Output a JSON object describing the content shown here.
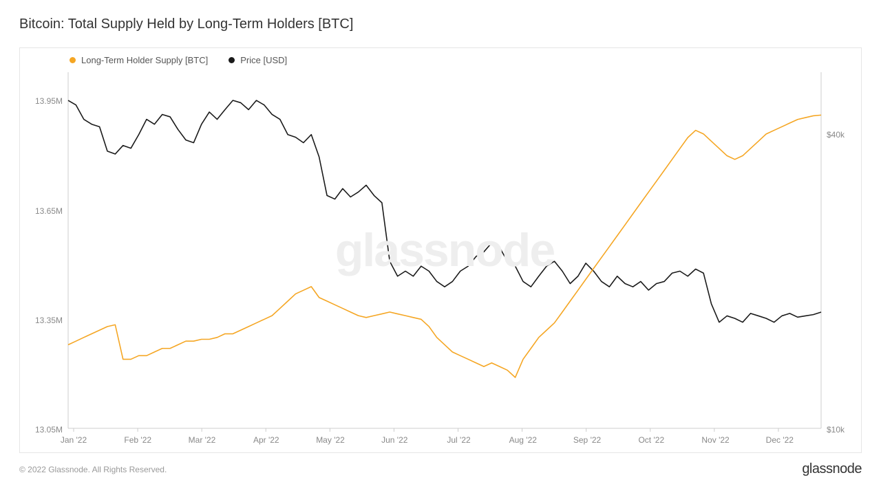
{
  "title": "Bitcoin: Total Supply Held by Long-Term Holders [BTC]",
  "copyright": "© 2022 Glassnode. All Rights Reserved.",
  "brand": "glassnode",
  "watermark": "glassnode",
  "legend": {
    "series1": {
      "label": "Long-Term Holder Supply [BTC]",
      "color": "#f5a623"
    },
    "series2": {
      "label": "Price [USD]",
      "color": "#1a1a1a"
    }
  },
  "chart": {
    "type": "line",
    "background_color": "#ffffff",
    "border_color": "#e5e5e5",
    "axis_color": "#cccccc",
    "label_color": "#888888",
    "label_fontsize": 12,
    "title_fontsize": 20,
    "line_width": 1.6,
    "x_labels": [
      "Jan '22",
      "Feb '22",
      "Mar '22",
      "Apr '22",
      "May '22",
      "Jun '22",
      "Jul '22",
      "Aug '22",
      "Sep '22",
      "Oct '22",
      "Nov '22",
      "Dec '22"
    ],
    "y_left": {
      "min": 13.05,
      "max": 14.03,
      "ticks": [
        {
          "v": 13.05,
          "label": "13.05M"
        },
        {
          "v": 13.35,
          "label": "13.35M"
        },
        {
          "v": 13.65,
          "label": "13.65M"
        },
        {
          "v": 13.95,
          "label": "13.95M"
        }
      ]
    },
    "y_right": {
      "min_log": 4.0,
      "max_log": 4.73,
      "ticks": [
        {
          "log": 4.0,
          "label": "$10k"
        },
        {
          "log": 4.602,
          "label": "$40k"
        }
      ]
    },
    "supply_series": {
      "color": "#f5a623",
      "data": [
        13.28,
        13.29,
        13.3,
        13.31,
        13.32,
        13.33,
        13.335,
        13.24,
        13.24,
        13.25,
        13.25,
        13.26,
        13.27,
        13.27,
        13.28,
        13.29,
        13.29,
        13.295,
        13.295,
        13.3,
        13.31,
        13.31,
        13.32,
        13.33,
        13.34,
        13.35,
        13.36,
        13.38,
        13.4,
        13.42,
        13.43,
        13.44,
        13.41,
        13.4,
        13.39,
        13.38,
        13.37,
        13.36,
        13.355,
        13.36,
        13.365,
        13.37,
        13.365,
        13.36,
        13.355,
        13.35,
        13.33,
        13.3,
        13.28,
        13.26,
        13.25,
        13.24,
        13.23,
        13.22,
        13.23,
        13.22,
        13.21,
        13.19,
        13.24,
        13.27,
        13.3,
        13.32,
        13.34,
        13.37,
        13.4,
        13.43,
        13.46,
        13.49,
        13.52,
        13.55,
        13.58,
        13.61,
        13.64,
        13.67,
        13.7,
        13.73,
        13.76,
        13.79,
        13.82,
        13.85,
        13.87,
        13.86,
        13.84,
        13.82,
        13.8,
        13.79,
        13.8,
        13.82,
        13.84,
        13.86,
        13.87,
        13.88,
        13.89,
        13.9,
        13.905,
        13.91,
        13.912
      ]
    },
    "price_series": {
      "color": "#1a1a1a",
      "data": [
        47000,
        46000,
        43000,
        42000,
        41500,
        37000,
        36500,
        38000,
        37500,
        40000,
        43000,
        42000,
        44000,
        43500,
        41000,
        39000,
        38500,
        42000,
        44500,
        43000,
        45000,
        47000,
        46500,
        45000,
        47000,
        46000,
        44000,
        43000,
        40000,
        39500,
        38500,
        40000,
        36000,
        30000,
        29500,
        31000,
        29800,
        30500,
        31500,
        30000,
        29000,
        22000,
        20500,
        21000,
        20500,
        21500,
        21000,
        20000,
        19500,
        20000,
        21000,
        21500,
        22500,
        23000,
        24000,
        23500,
        22000,
        21500,
        20000,
        19500,
        20500,
        21500,
        22000,
        21000,
        19800,
        20500,
        21800,
        21000,
        20000,
        19500,
        20500,
        19800,
        19500,
        20000,
        19200,
        19800,
        20000,
        20800,
        21000,
        20500,
        21200,
        20800,
        18000,
        16500,
        17000,
        16800,
        16500,
        17200,
        17000,
        16800,
        16500,
        17000,
        17200,
        16900,
        17000,
        17100,
        17300
      ]
    }
  }
}
